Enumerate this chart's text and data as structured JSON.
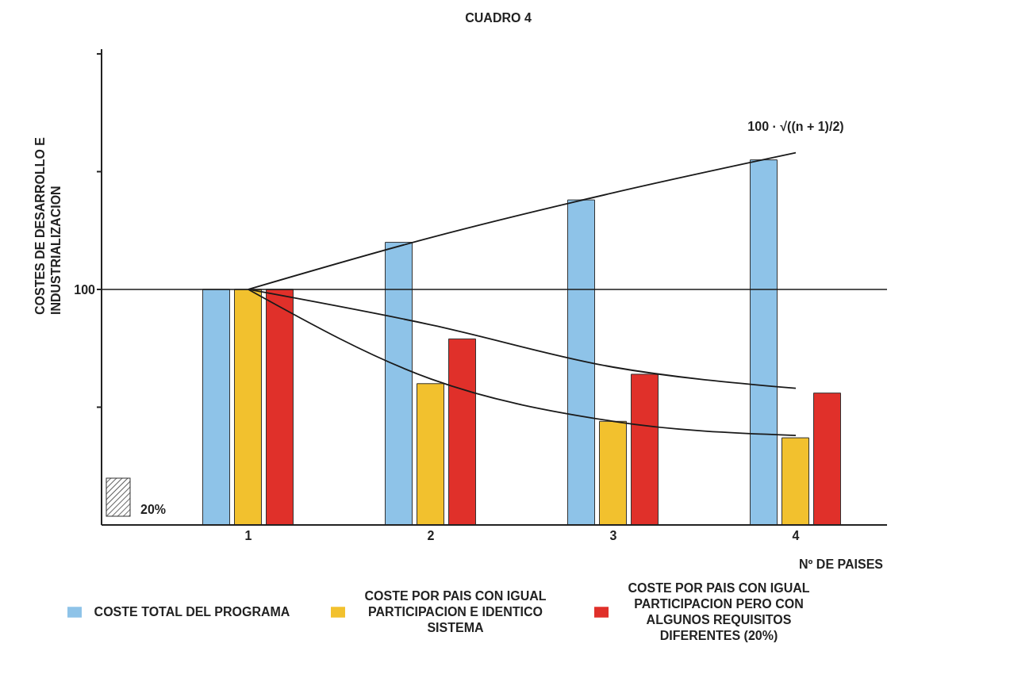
{
  "chart_data": {
    "type": "bar",
    "title": "CUADRO 4",
    "xlabel": "Nº DE PAISES",
    "ylabel": "COSTES DE DESARROLLO E INDUSTRIALIZACION",
    "categories": [
      "1",
      "2",
      "3",
      "4"
    ],
    "ylim": [
      0,
      202
    ],
    "yticks": [
      {
        "value": 50,
        "label": null
      },
      100,
      {
        "value": 150,
        "label": null
      },
      {
        "value": 200,
        "label": null
      }
    ],
    "series": [
      {
        "name": "COSTE TOTAL DEL PROGRAMA",
        "color": "#8ec3e8",
        "values": [
          100,
          120,
          138,
          155
        ]
      },
      {
        "name": "COSTE POR PAIS CON IGUAL PARTICIPACION E IDENTICO SISTEMA",
        "color": "#f2c12e",
        "values": [
          100,
          60,
          44,
          37
        ]
      },
      {
        "name": "COSTE POR PAIS CON IGUAL PARTICIPACION PERO CON ALGUNOS REQUISITOS DIFERENTES (20%)",
        "color": "#e0302a",
        "values": [
          100,
          79,
          64,
          56
        ]
      },
      {
        "type": "line",
        "color": "#1a1a1a",
        "values": [
          100,
          122,
          141,
          158
        ]
      },
      {
        "type": "line",
        "color": "#1a1a1a",
        "values": [
          100,
          85,
          67,
          58
        ]
      },
      {
        "type": "line",
        "color": "#1a1a1a",
        "values": [
          100,
          62,
          44,
          38
        ]
      }
    ],
    "ref_lines": [
      {
        "axis": "y",
        "value": 100,
        "color": "#1a1a1a"
      }
    ],
    "annotations": [
      {
        "text": "100 · √((n + 1)/2)",
        "x": "4",
        "y": 158
      },
      "20%"
    ],
    "marker": "none",
    "legend": "bottom"
  }
}
